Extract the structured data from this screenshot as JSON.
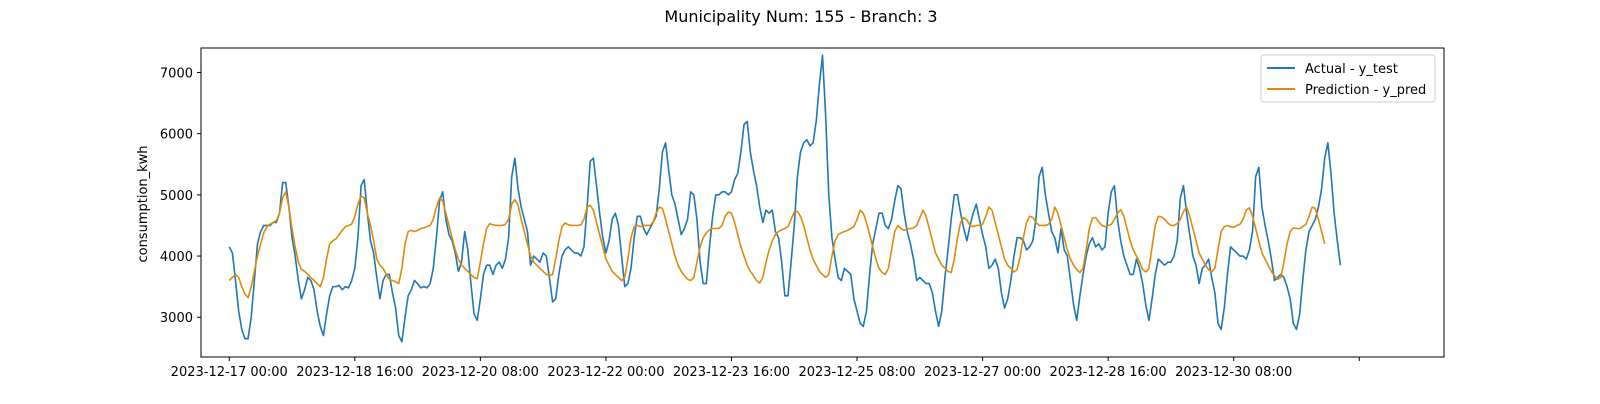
{
  "chart_data": {
    "type": "line",
    "title": "Municipality Num: 155 - Branch: 3",
    "xlabel": "",
    "ylabel": "consumption_kwh",
    "x_start": "2023-12-17 00:00",
    "x_step_hours": 1,
    "xlim_hours": [
      -9,
      387
    ],
    "ylim": [
      2350,
      7400
    ],
    "yticks": [
      3000,
      4000,
      5000,
      6000,
      7000
    ],
    "ytick_labels": [
      "3000",
      "4000",
      "5000",
      "6000",
      "7000"
    ],
    "xtick_labels": [
      "2023-12-17 00:00",
      "2023-12-18 16:00",
      "2023-12-20 08:00",
      "2023-12-22 00:00",
      "2023-12-23 16:00",
      "2023-12-25 08:00",
      "2023-12-27 00:00",
      "2023-12-28 16:00",
      "2023-12-30 08:00",
      ""
    ],
    "grid": false,
    "legend_position": "upper right",
    "series": [
      {
        "name": "Actual - y_test",
        "color": "#1f77b4",
        "values": [
          4150,
          4050,
          3600,
          3100,
          2800,
          2650,
          2650,
          3000,
          3600,
          4200,
          4400,
          4500,
          4500,
          4500,
          4550,
          4550,
          4700,
          5200,
          5200,
          4800,
          4300,
          4000,
          3600,
          3300,
          3450,
          3650,
          3600,
          3450,
          3100,
          2850,
          2700,
          3050,
          3350,
          3500,
          3500,
          3520,
          3450,
          3500,
          3480,
          3600,
          3800,
          4300,
          5150,
          5250,
          4700,
          4250,
          4050,
          3650,
          3300,
          3600,
          3700,
          3700,
          3400,
          3150,
          2700,
          2600,
          3000,
          3350,
          3450,
          3600,
          3550,
          3480,
          3500,
          3480,
          3550,
          3800,
          4300,
          4900,
          5050,
          4600,
          4350,
          4250,
          4050,
          3750,
          3900,
          4400,
          4100,
          3550,
          3050,
          2950,
          3300,
          3700,
          3850,
          3850,
          3700,
          3850,
          3900,
          3800,
          3950,
          4300,
          5300,
          5600,
          5100,
          4800,
          4600,
          4400,
          3850,
          4000,
          3950,
          3900,
          4050,
          4000,
          3650,
          3250,
          3300,
          3700,
          4000,
          4100,
          4150,
          4100,
          4050,
          4050,
          4000,
          4150,
          4800,
          5550,
          5600,
          5150,
          4700,
          4300,
          4050,
          4250,
          4600,
          4700,
          4500,
          4000,
          3500,
          3550,
          3800,
          4300,
          4650,
          4650,
          4450,
          4350,
          4450,
          4550,
          4650,
          5100,
          5700,
          5850,
          5400,
          5000,
          4850,
          4600,
          4350,
          4450,
          4600,
          5050,
          5000,
          4600,
          3900,
          3550,
          3550,
          4150,
          4650,
          5000,
          5000,
          5050,
          5050,
          5000,
          5050,
          5250,
          5350,
          5700,
          6150,
          6200,
          5700,
          5400,
          5150,
          4800,
          4550,
          4750,
          4700,
          4750,
          4400,
          4300,
          3900,
          3350,
          3350,
          3900,
          4500,
          5300,
          5700,
          5850,
          5900,
          5800,
          5850,
          6200,
          6800,
          7280,
          6300,
          5000,
          4300,
          3950,
          3650,
          3600,
          3800,
          3750,
          3700,
          3300,
          3100,
          2900,
          2850,
          3100,
          3700,
          4200,
          4450,
          4700,
          4700,
          4500,
          4450,
          4600,
          4900,
          5150,
          5100,
          4700,
          4400,
          4200,
          3950,
          3600,
          3650,
          3600,
          3550,
          3550,
          3400,
          3100,
          2850,
          3100,
          3650,
          4100,
          4600,
          5000,
          5000,
          4700,
          4450,
          4250,
          4500,
          4700,
          4850,
          4600,
          4350,
          4150,
          3800,
          3850,
          3950,
          3800,
          3400,
          3150,
          3300,
          3600,
          4000,
          4300,
          4300,
          4250,
          4100,
          4150,
          4250,
          4600,
          5300,
          5450,
          5000,
          4700,
          4400,
          4300,
          4050,
          4450,
          4100,
          4000,
          3600,
          3200,
          2950,
          3350,
          3700,
          4000,
          4200,
          4300,
          4150,
          4200,
          4100,
          4150,
          4700,
          5050,
          5150,
          4600,
          4250,
          4000,
          3850,
          3700,
          3700,
          3950,
          3800,
          3550,
          3200,
          2950,
          3300,
          3700,
          3950,
          3900,
          3850,
          3900,
          3900,
          4000,
          4250,
          4950,
          5150,
          4700,
          4350,
          4000,
          3850,
          3550,
          3800,
          3850,
          3950,
          3650,
          3400,
          2900,
          2800,
          3150,
          3700,
          4150,
          4100,
          4050,
          4000,
          4000,
          3950,
          4100,
          4400,
          5300,
          5450,
          4800,
          4500,
          4250,
          3950,
          3600,
          3650,
          3700,
          3650,
          3500,
          3300,
          2900,
          2800,
          3050,
          3600,
          4100,
          4400,
          4500,
          4600,
          4800,
          5100,
          5600,
          5850,
          5350,
          4700,
          4250,
          3850
        ]
      },
      {
        "name": "Prediction - y_pred",
        "color": "#e08a0b",
        "values": [
          3600,
          3650,
          3700,
          3650,
          3500,
          3380,
          3320,
          3500,
          3750,
          4000,
          4200,
          4380,
          4480,
          4520,
          4550,
          4580,
          4700,
          4950,
          5050,
          4800,
          4450,
          4150,
          3900,
          3780,
          3750,
          3700,
          3650,
          3600,
          3550,
          3500,
          3650,
          3950,
          4200,
          4250,
          4280,
          4350,
          4420,
          4480,
          4500,
          4520,
          4650,
          4850,
          4980,
          4950,
          4700,
          4500,
          4250,
          3950,
          3850,
          3800,
          3700,
          3620,
          3600,
          3580,
          3550,
          3800,
          4200,
          4400,
          4420,
          4400,
          4420,
          4450,
          4460,
          4480,
          4500,
          4600,
          4800,
          4950,
          4900,
          4700,
          4500,
          4300,
          4100,
          3950,
          3850,
          3800,
          3750,
          3700,
          3650,
          3630,
          3900,
          4200,
          4450,
          4530,
          4510,
          4500,
          4500,
          4500,
          4520,
          4600,
          4850,
          4920,
          4830,
          4600,
          4400,
          4200,
          4000,
          3900,
          3850,
          3800,
          3750,
          3700,
          3680,
          3700,
          3950,
          4250,
          4480,
          4540,
          4510,
          4500,
          4500,
          4500,
          4510,
          4600,
          4800,
          4830,
          4750,
          4550,
          4350,
          4150,
          3950,
          3850,
          3750,
          3700,
          3650,
          3600,
          3650,
          3950,
          4300,
          4480,
          4500,
          4480,
          4500,
          4500,
          4500,
          4550,
          4700,
          4800,
          4780,
          4600,
          4400,
          4200,
          4000,
          3850,
          3750,
          3680,
          3620,
          3600,
          3650,
          3900,
          4150,
          4300,
          4380,
          4430,
          4450,
          4450,
          4450,
          4500,
          4650,
          4720,
          4700,
          4550,
          4350,
          4150,
          4000,
          3850,
          3750,
          3680,
          3600,
          3560,
          3650,
          3900,
          4100,
          4250,
          4350,
          4400,
          4430,
          4450,
          4480,
          4600,
          4720,
          4730,
          4650,
          4500,
          4300,
          4100,
          3950,
          3850,
          3750,
          3700,
          3650,
          3700,
          4000,
          4250,
          4350,
          4380,
          4400,
          4420,
          4450,
          4480,
          4600,
          4750,
          4700,
          4550,
          4350,
          4150,
          3950,
          3800,
          3730,
          3700,
          3800,
          4100,
          4400,
          4500,
          4450,
          4420,
          4440,
          4450,
          4460,
          4500,
          4620,
          4750,
          4650,
          4450,
          4250,
          4050,
          3950,
          3850,
          3800,
          3750,
          3730,
          3950,
          4300,
          4550,
          4630,
          4590,
          4500,
          4480,
          4500,
          4500,
          4520,
          4650,
          4800,
          4750,
          4550,
          4350,
          4150,
          3950,
          3850,
          3800,
          3740,
          3780,
          4000,
          4300,
          4550,
          4650,
          4630,
          4550,
          4500,
          4500,
          4500,
          4520,
          4600,
          4800,
          4700,
          4500,
          4300,
          4100,
          3950,
          3850,
          3780,
          3730,
          3800,
          4100,
          4450,
          4620,
          4630,
          4560,
          4500,
          4480,
          4500,
          4520,
          4600,
          4700,
          4760,
          4650,
          4450,
          4250,
          4100,
          4000,
          3900,
          3780,
          3740,
          3800,
          4150,
          4500,
          4650,
          4640,
          4600,
          4540,
          4500,
          4500,
          4530,
          4600,
          4730,
          4800,
          4650,
          4450,
          4250,
          4050,
          3950,
          3850,
          3780,
          3740,
          3800,
          4100,
          4400,
          4480,
          4500,
          4480,
          4470,
          4500,
          4520,
          4600,
          4750,
          4790,
          4650,
          4450,
          4250,
          4050,
          3950,
          3850,
          3750,
          3680,
          3620,
          3650,
          3900,
          4200,
          4400,
          4460,
          4450,
          4450,
          4480,
          4520,
          4650,
          4800,
          4780,
          4600,
          4400,
          4200
        ]
      }
    ]
  }
}
